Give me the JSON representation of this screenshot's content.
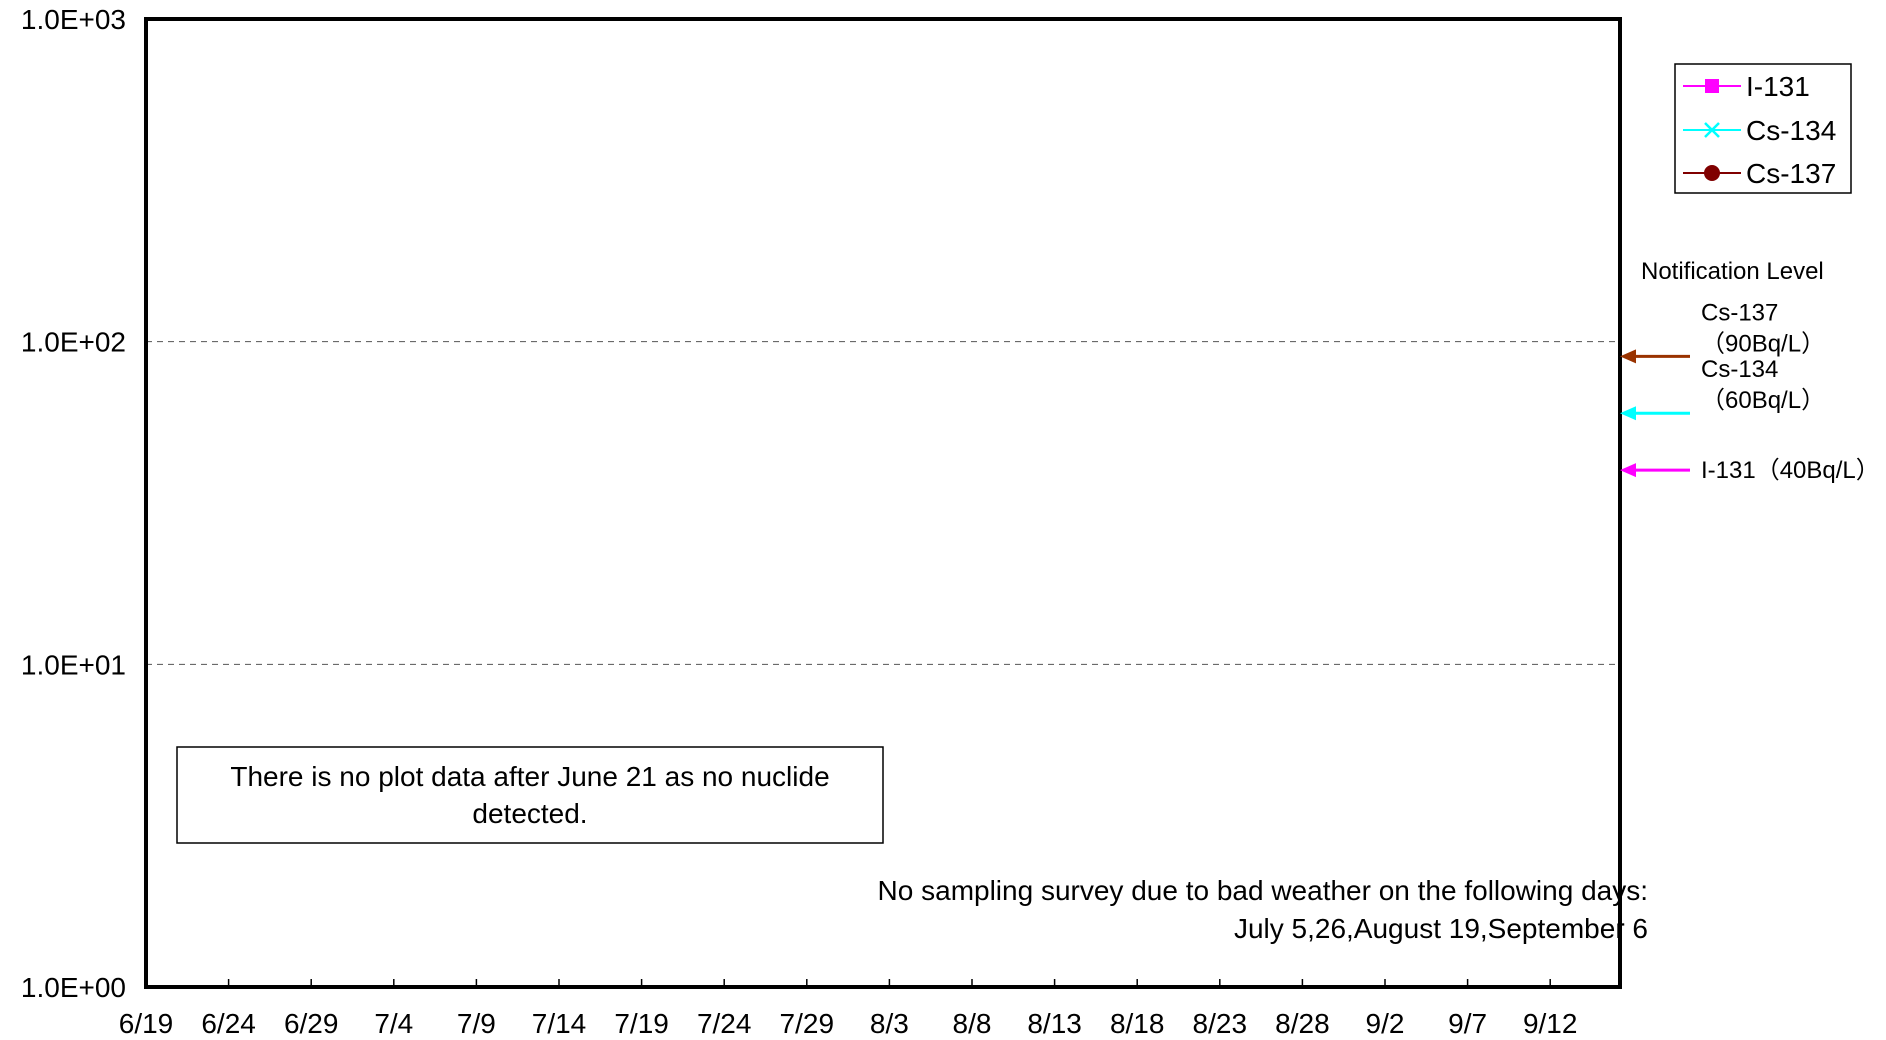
{
  "chart_data": {
    "type": "line",
    "title": "",
    "xlabel": "",
    "ylabel": "",
    "y_scale": "log",
    "ylim": [
      1,
      1000
    ],
    "y_ticks": [
      {
        "value": 1,
        "label": "1.0E+00"
      },
      {
        "value": 10,
        "label": "1.0E+01"
      },
      {
        "value": 100,
        "label": "1.0E+02"
      },
      {
        "value": 1000,
        "label": "1.0E+03"
      }
    ],
    "x_ticks": [
      "6/19",
      "6/24",
      "6/29",
      "7/4",
      "7/9",
      "7/14",
      "7/19",
      "7/24",
      "7/29",
      "8/3",
      "8/8",
      "8/13",
      "8/18",
      "8/23",
      "8/28",
      "9/2",
      "9/7",
      "9/12"
    ],
    "grid_y_values": [
      10,
      100
    ],
    "grid_style": "dashed",
    "series": [
      {
        "name": "I-131",
        "color": "#ff00ff",
        "marker": "square",
        "values": []
      },
      {
        "name": "Cs-134",
        "color": "#00ffff",
        "marker": "x",
        "values": []
      },
      {
        "name": "Cs-137",
        "color": "#800000",
        "marker": "circle",
        "values": []
      }
    ],
    "legend_position": "top-right",
    "notification_level": {
      "title": "Notification Level",
      "levels": [
        {
          "nuclide": "Cs-137",
          "value": 90,
          "label_line1": "Cs-137",
          "label_line2": "（90Bq/L）",
          "color": "#993300"
        },
        {
          "nuclide": "Cs-134",
          "value": 60,
          "label_line1": "Cs-134",
          "label_line2": "（60Bq/L）",
          "color": "#00ffff"
        },
        {
          "nuclide": "I-131",
          "value": 40,
          "label_line1": "I-131（40Bq/L）",
          "label_line2": "",
          "color": "#ff00ff"
        }
      ]
    },
    "annotations": {
      "no_data_line1": "There is no plot data after June 21 as no nuclide",
      "no_data_line2": "detected.",
      "no_sampling_line1": "No sampling survey due to bad weather on the following days:",
      "no_sampling_line2": "July 5,26,August 19,September 6"
    }
  }
}
